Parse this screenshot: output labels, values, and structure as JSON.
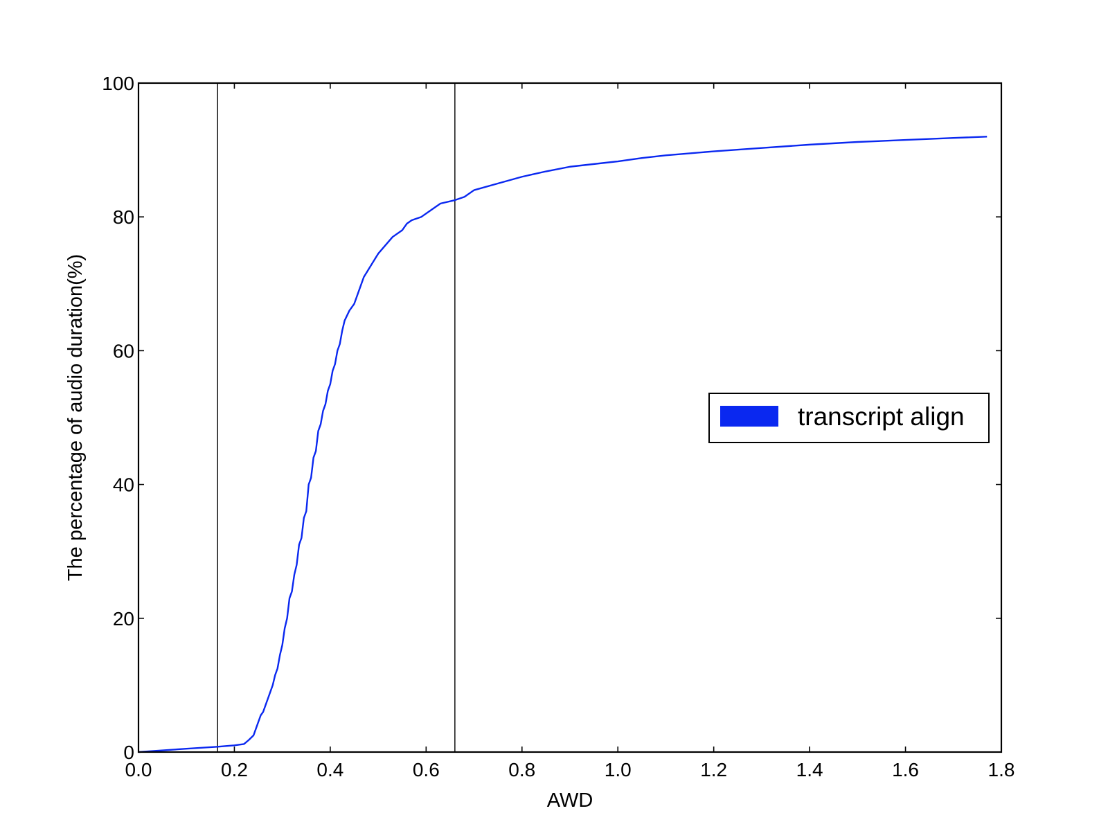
{
  "chart_data": {
    "type": "line",
    "xlabel": "AWD",
    "ylabel": "The percentage of audio duration(%)",
    "xlim": [
      0.0,
      1.8
    ],
    "ylim": [
      0,
      100
    ],
    "xticks": [
      "0.0",
      "0.2",
      "0.4",
      "0.6",
      "0.8",
      "1.0",
      "1.2",
      "1.4",
      "1.6",
      "1.8"
    ],
    "yticks": [
      "0",
      "20",
      "40",
      "60",
      "80",
      "100"
    ],
    "grid": false,
    "legend_position": "center-right",
    "vertical_lines": [
      0.165,
      0.66
    ],
    "series": [
      {
        "name": "transcript align",
        "color": "#0a28f0",
        "x": [
          0.0,
          0.1,
          0.165,
          0.2,
          0.22,
          0.23,
          0.24,
          0.245,
          0.25,
          0.255,
          0.26,
          0.265,
          0.27,
          0.275,
          0.28,
          0.285,
          0.29,
          0.295,
          0.3,
          0.305,
          0.31,
          0.315,
          0.32,
          0.325,
          0.33,
          0.335,
          0.34,
          0.345,
          0.35,
          0.355,
          0.36,
          0.365,
          0.37,
          0.375,
          0.38,
          0.385,
          0.39,
          0.395,
          0.4,
          0.405,
          0.41,
          0.415,
          0.42,
          0.425,
          0.43,
          0.44,
          0.45,
          0.455,
          0.46,
          0.465,
          0.47,
          0.5,
          0.53,
          0.55,
          0.56,
          0.57,
          0.59,
          0.61,
          0.63,
          0.66,
          0.68,
          0.7,
          0.75,
          0.8,
          0.85,
          0.9,
          1.0,
          1.05,
          1.1,
          1.2,
          1.3,
          1.4,
          1.5,
          1.6,
          1.7,
          1.77
        ],
        "y": [
          0,
          0.5,
          0.8,
          1.0,
          1.2,
          1.8,
          2.5,
          3.5,
          4.5,
          5.5,
          6.0,
          7.0,
          8.0,
          9.0,
          10.0,
          11.5,
          12.5,
          14.5,
          16.0,
          18.5,
          20.0,
          23.0,
          24.0,
          26.5,
          28.0,
          31.0,
          32.0,
          35.0,
          36.0,
          40.0,
          41.0,
          44.0,
          45.0,
          48.0,
          49.0,
          51.0,
          52.0,
          54.0,
          55.0,
          57.0,
          58.0,
          60.0,
          61.0,
          63.0,
          64.5,
          66.0,
          67.0,
          68.0,
          69.0,
          70.0,
          71.0,
          74.5,
          77.0,
          78.0,
          79.0,
          79.5,
          80.0,
          81.0,
          82.0,
          82.5,
          83.0,
          84.0,
          85.0,
          86.0,
          86.8,
          87.5,
          88.3,
          88.8,
          89.2,
          89.8,
          90.3,
          90.8,
          91.2,
          91.5,
          91.8,
          92.0
        ]
      }
    ]
  }
}
